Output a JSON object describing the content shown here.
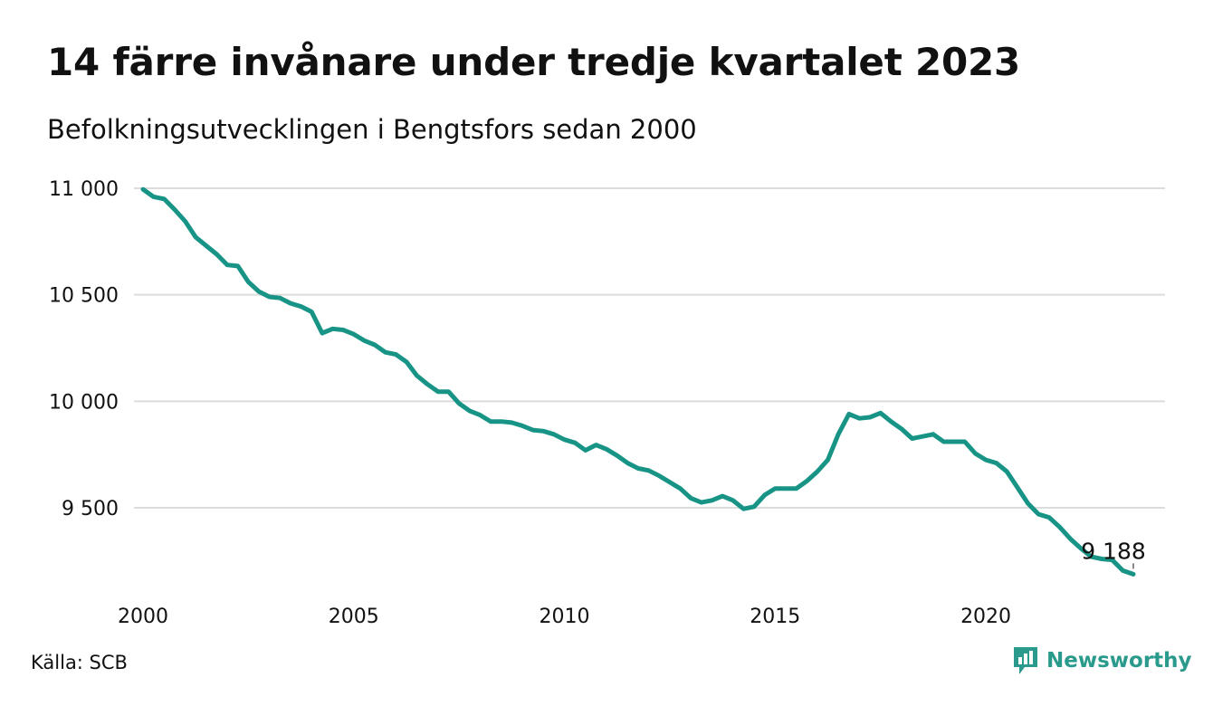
{
  "title": "14 färre invånare under tredje kvartalet 2023",
  "subtitle": "Befolkningsutvecklingen i Bengtsfors sedan 2000",
  "source": "Källa: SCB",
  "brand": {
    "name": "Newsworthy",
    "icon": "newsworthy-logo-icon",
    "color": "#2a9a8d"
  },
  "chart_data": {
    "type": "line",
    "series_color": "#179486",
    "gridlines": true,
    "ylim": [
      9100,
      11100
    ],
    "y_ticks": [
      {
        "value": 11000,
        "label": "11 000"
      },
      {
        "value": 10500,
        "label": "10 500"
      },
      {
        "value": 10000,
        "label": "10 000"
      },
      {
        "value": 9500,
        "label": "9 500"
      }
    ],
    "x_ticks": [
      {
        "value": 2000,
        "label": "2000"
      },
      {
        "value": 2005,
        "label": "2005"
      },
      {
        "value": 2010,
        "label": "2010"
      },
      {
        "value": 2015,
        "label": "2015"
      },
      {
        "value": 2020,
        "label": "2020"
      }
    ],
    "end_label": "9 188",
    "x": [
      2000.0,
      2000.25,
      2000.5,
      2000.75,
      2001.0,
      2001.25,
      2001.5,
      2001.75,
      2002.0,
      2002.25,
      2002.5,
      2002.75,
      2003.0,
      2003.25,
      2003.5,
      2003.75,
      2004.0,
      2004.25,
      2004.5,
      2004.75,
      2005.0,
      2005.25,
      2005.5,
      2005.75,
      2006.0,
      2006.25,
      2006.5,
      2006.75,
      2007.0,
      2007.25,
      2007.5,
      2007.75,
      2008.0,
      2008.25,
      2008.5,
      2008.75,
      2009.0,
      2009.25,
      2009.5,
      2009.75,
      2010.0,
      2010.25,
      2010.5,
      2010.75,
      2011.0,
      2011.25,
      2011.5,
      2011.75,
      2012.0,
      2012.25,
      2012.5,
      2012.75,
      2013.0,
      2013.25,
      2013.5,
      2013.75,
      2014.0,
      2014.25,
      2014.5,
      2014.75,
      2015.0,
      2015.25,
      2015.5,
      2015.75,
      2016.0,
      2016.25,
      2016.5,
      2016.75,
      2017.0,
      2017.25,
      2017.5,
      2017.75,
      2018.0,
      2018.25,
      2018.5,
      2018.75,
      2019.0,
      2019.25,
      2019.5,
      2019.75,
      2020.0,
      2020.25,
      2020.5,
      2020.75,
      2021.0,
      2021.25,
      2021.5,
      2021.75,
      2022.0,
      2022.25,
      2022.5,
      2022.75,
      2023.0,
      2023.25,
      2023.5
    ],
    "y": [
      10995,
      10960,
      10950,
      10900,
      10845,
      10770,
      10730,
      10690,
      10640,
      10635,
      10560,
      10515,
      10490,
      10485,
      10460,
      10445,
      10420,
      10320,
      10340,
      10335,
      10315,
      10285,
      10265,
      10230,
      10220,
      10185,
      10120,
      10080,
      10045,
      10045,
      9990,
      9955,
      9935,
      9905,
      9905,
      9900,
      9885,
      9865,
      9860,
      9845,
      9820,
      9805,
      9770,
      9795,
      9775,
      9745,
      9710,
      9685,
      9675,
      9650,
      9620,
      9590,
      9545,
      9525,
      9535,
      9555,
      9535,
      9495,
      9505,
      9560,
      9590,
      9590,
      9590,
      9625,
      9670,
      9725,
      9845,
      9940,
      9920,
      9925,
      9945,
      9905,
      9870,
      9825,
      9835,
      9845,
      9810,
      9810,
      9810,
      9755,
      9725,
      9710,
      9670,
      9595,
      9520,
      9470,
      9455,
      9410,
      9355,
      9310,
      9270,
      9260,
      9255,
      9205,
      9188
    ]
  }
}
